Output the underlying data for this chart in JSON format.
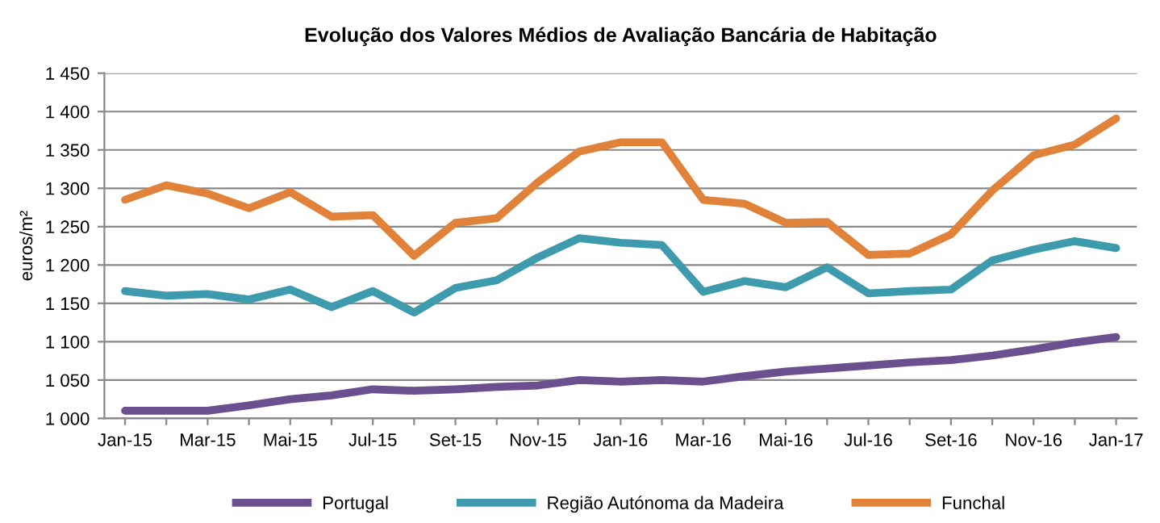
{
  "chart_data": {
    "type": "line",
    "title": "Evolução dos Valores Médios de Avaliação Bancária de Habitação",
    "ylabel": "euros/m²",
    "categories": [
      "Jan-15",
      null,
      "Mar-15",
      null,
      "Mai-15",
      null,
      "Jul-15",
      null,
      "Set-15",
      null,
      "Nov-15",
      null,
      "Jan-16",
      null,
      "Mar-16",
      null,
      "Mai-16",
      null,
      "Jul-16",
      null,
      "Set-16",
      null,
      "Nov-16",
      null,
      "Jan-17"
    ],
    "series": [
      {
        "name": "Portugal",
        "color": "#6b4f8f",
        "values": [
          1010,
          1010,
          1010,
          1017,
          1025,
          1030,
          1038,
          1036,
          1038,
          1041,
          1043,
          1050,
          1048,
          1050,
          1048,
          1055,
          1061,
          1065,
          1069,
          1073,
          1076,
          1082,
          1090,
          1099,
          1106
        ]
      },
      {
        "name": "Região Autónoma da Madeira",
        "color": "#3e9aad",
        "values": [
          1166,
          1160,
          1162,
          1155,
          1168,
          1145,
          1166,
          1138,
          1170,
          1180,
          1210,
          1235,
          1229,
          1226,
          1165,
          1179,
          1171,
          1197,
          1163,
          1166,
          1168,
          1206,
          1220,
          1231,
          1222
        ]
      },
      {
        "name": "Funchal",
        "color": "#e0823a",
        "values": [
          1285,
          1304,
          1293,
          1274,
          1295,
          1263,
          1265,
          1212,
          1255,
          1261,
          1308,
          1348,
          1360,
          1360,
          1285,
          1280,
          1255,
          1256,
          1213,
          1215,
          1240,
          1297,
          1343,
          1357,
          1391
        ]
      }
    ],
    "ylim": [
      1000,
      1450
    ],
    "yticks": [
      {
        "value": 1000,
        "label": "1 000"
      },
      {
        "value": 1050,
        "label": "1 050"
      },
      {
        "value": 1100,
        "label": "1 100"
      },
      {
        "value": 1150,
        "label": "1 150"
      },
      {
        "value": 1200,
        "label": "1 200"
      },
      {
        "value": 1250,
        "label": "1 250"
      },
      {
        "value": 1300,
        "label": "1 300"
      },
      {
        "value": 1350,
        "label": "1 350"
      },
      {
        "value": 1400,
        "label": "1 400"
      },
      {
        "value": 1450,
        "label": "1 450"
      }
    ],
    "grid": "y",
    "legend": "bottom",
    "marker": "none",
    "line_style": "solid"
  }
}
